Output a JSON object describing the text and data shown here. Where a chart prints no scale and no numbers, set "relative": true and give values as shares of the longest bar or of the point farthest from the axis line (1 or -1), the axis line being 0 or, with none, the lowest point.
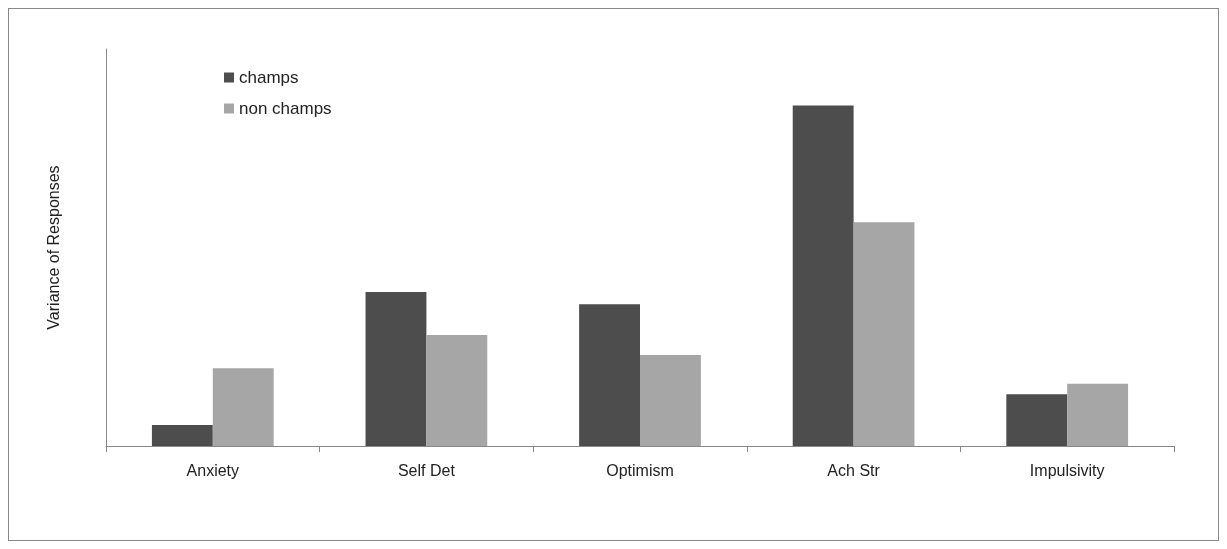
{
  "chart_data": {
    "type": "bar",
    "ylabel": "Variance of Responses",
    "relative": true,
    "categories": [
      "Anxiety",
      "Self Det",
      "Optimism",
      "Ach Str",
      "Impulsivity"
    ],
    "series": [
      {
        "name": "champs",
        "color": "#4d4d4d",
        "values": [
          0.062,
          0.452,
          0.416,
          1,
          0.152
        ]
      },
      {
        "name": "non champs",
        "color": "#a6a6a6",
        "values": [
          0.228,
          0.326,
          0.267,
          0.657,
          0.183
        ]
      }
    ],
    "legend": "top left",
    "grid": false
  }
}
